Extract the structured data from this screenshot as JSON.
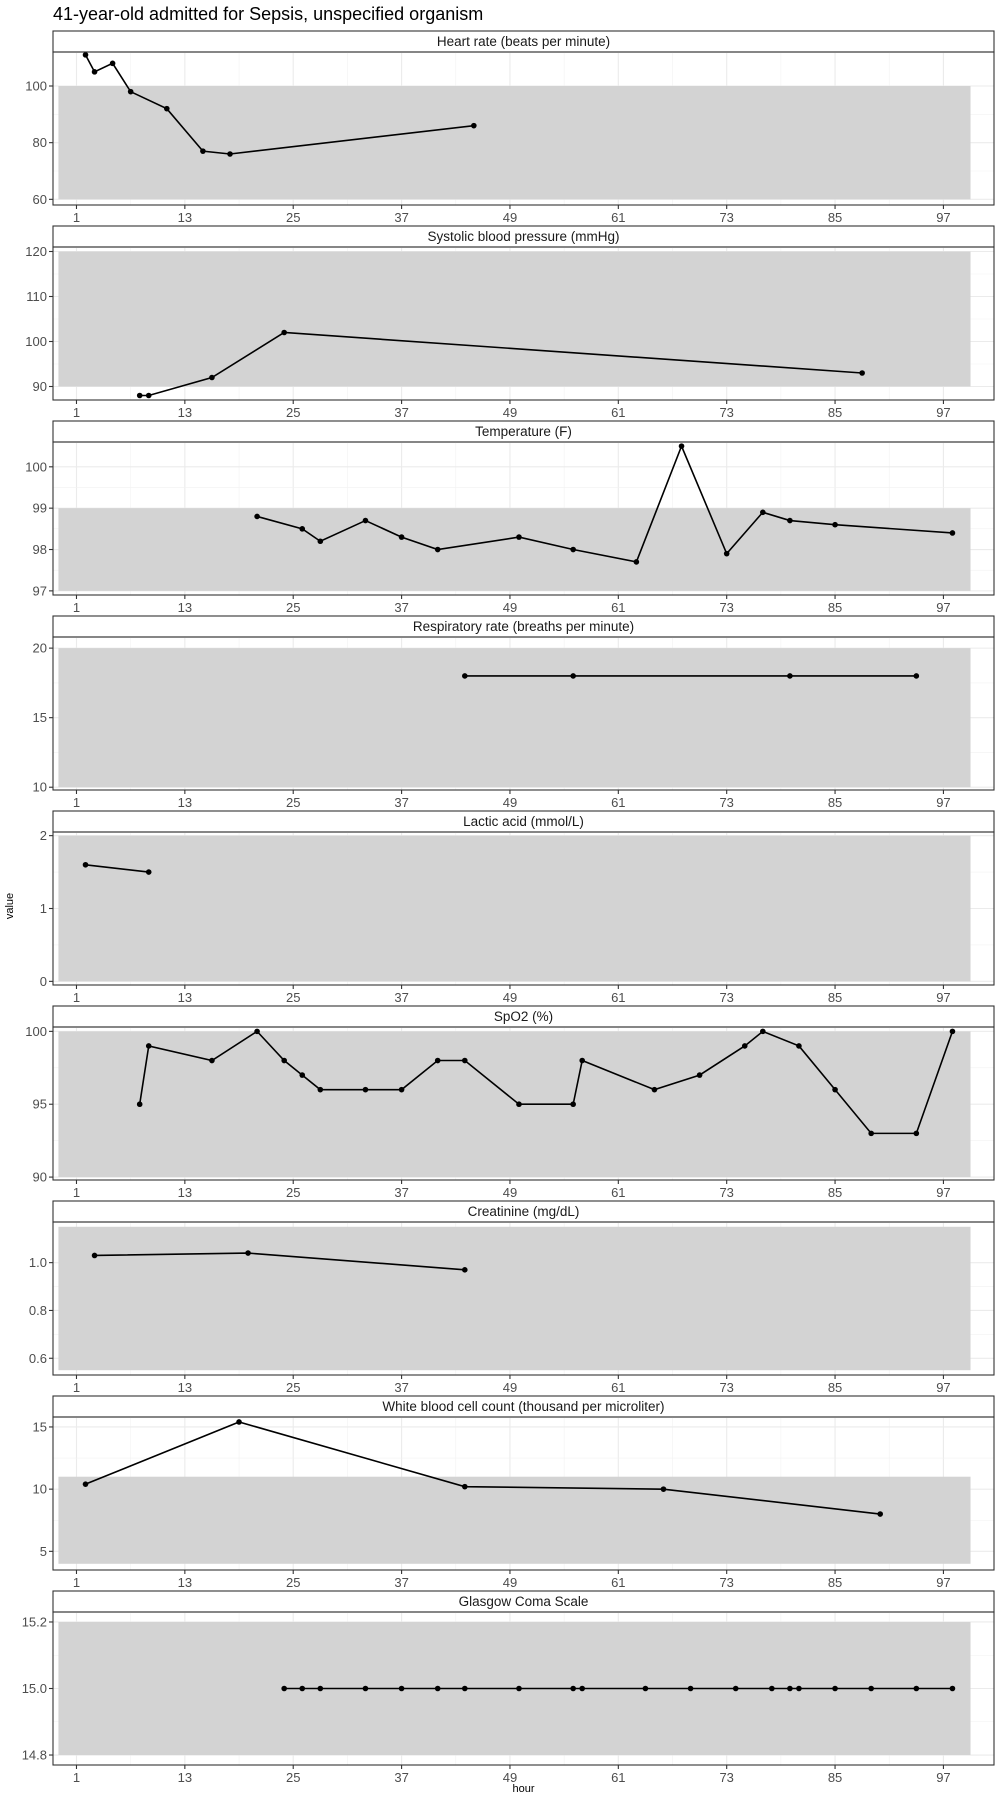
{
  "chart_data": {
    "type": "line",
    "title": "41-year-old admitted for Sepsis, unspecified organism",
    "xlabel": "hour",
    "ylabel": "value",
    "xlim": [
      -1.6,
      102.6
    ],
    "x_ticks": [
      1,
      13,
      25,
      37,
      49,
      61,
      73,
      85,
      97
    ],
    "grid": true,
    "panels": [
      {
        "name": "Heart rate (beats per minute)",
        "ylim": [
          58,
          112
        ],
        "y_ticks": [
          60,
          80,
          100
        ],
        "normal_range": [
          60,
          100
        ],
        "x": [
          2,
          3,
          5,
          7,
          11,
          15,
          18,
          45
        ],
        "y": [
          111,
          105,
          108,
          98,
          92,
          77,
          76,
          86
        ]
      },
      {
        "name": "Systolic blood pressure (mmHg)",
        "ylim": [
          87,
          121
        ],
        "y_ticks": [
          90,
          100,
          110,
          120
        ],
        "normal_range": [
          90,
          120
        ],
        "x": [
          8,
          9,
          16,
          24,
          88
        ],
        "y": [
          88,
          88,
          92,
          102,
          93
        ]
      },
      {
        "name": "Temperature (F)",
        "ylim": [
          96.9,
          100.6
        ],
        "y_ticks": [
          97,
          98,
          99,
          100
        ],
        "normal_range": [
          97,
          99
        ],
        "x": [
          21,
          26,
          28,
          33,
          37,
          41,
          50,
          56,
          63,
          68,
          73,
          77,
          80,
          85,
          98
        ],
        "y": [
          98.8,
          98.5,
          98.2,
          98.7,
          98.3,
          98.0,
          98.3,
          98.0,
          97.7,
          100.5,
          97.9,
          98.9,
          98.7,
          98.6,
          98.4
        ]
      },
      {
        "name": "Respiratory rate (breaths per minute)",
        "ylim": [
          9.8,
          20.8
        ],
        "y_ticks": [
          10,
          15,
          20
        ],
        "normal_range": [
          10,
          20
        ],
        "x": [
          44,
          56,
          80,
          94
        ],
        "y": [
          18,
          18,
          18,
          18
        ]
      },
      {
        "name": "Lactic acid (mmol/L)",
        "ylim": [
          -0.05,
          2.05
        ],
        "y_ticks": [
          0,
          1,
          2
        ],
        "normal_range": [
          0,
          2
        ],
        "x": [
          2,
          9
        ],
        "y": [
          1.6,
          1.5
        ]
      },
      {
        "name": "SpO2 (%)",
        "ylim": [
          89.8,
          100.3
        ],
        "y_ticks": [
          90,
          95,
          100
        ],
        "normal_range": [
          90,
          100
        ],
        "x": [
          8,
          9,
          16,
          21,
          24,
          26,
          28,
          33,
          37,
          41,
          44,
          50,
          56,
          57,
          65,
          70,
          75,
          77,
          81,
          85,
          89,
          94,
          98
        ],
        "y": [
          95,
          99,
          98,
          100,
          98,
          97,
          96,
          96,
          96,
          98,
          98,
          95,
          95,
          98,
          96,
          97,
          99,
          100,
          99,
          96,
          93,
          93,
          100
        ]
      },
      {
        "name": "Creatinine (mg/dL)",
        "ylim": [
          0.53,
          1.17
        ],
        "y_ticks": [
          0.6,
          0.8,
          1.0
        ],
        "y_tick_labels": [
          "0.6",
          "0.8",
          "1.0"
        ],
        "normal_range": [
          0.55,
          1.15
        ],
        "x": [
          3,
          20,
          44
        ],
        "y": [
          1.03,
          1.04,
          0.97
        ]
      },
      {
        "name": "White blood cell count (thousand per microliter)",
        "ylim": [
          3.5,
          15.8
        ],
        "y_ticks": [
          5,
          10,
          15
        ],
        "normal_range": [
          4,
          11
        ],
        "x": [
          2,
          19,
          44,
          66,
          90
        ],
        "y": [
          10.4,
          15.4,
          10.2,
          10.0,
          8.0
        ]
      },
      {
        "name": "Glasgow Coma Scale",
        "ylim": [
          14.77,
          15.23
        ],
        "y_ticks": [
          14.8,
          15.0,
          15.2
        ],
        "y_tick_labels": [
          "14.8",
          "15.0",
          "15.2"
        ],
        "normal_range": [
          14.8,
          15.2
        ],
        "x": [
          24,
          26,
          28,
          33,
          37,
          41,
          44,
          50,
          56,
          57,
          64,
          69,
          74,
          78,
          80,
          81,
          85,
          89,
          94,
          98
        ],
        "y": [
          15,
          15,
          15,
          15,
          15,
          15,
          15,
          15,
          15,
          15,
          15,
          15,
          15,
          15,
          15,
          15,
          15,
          15,
          15,
          15
        ]
      }
    ]
  }
}
